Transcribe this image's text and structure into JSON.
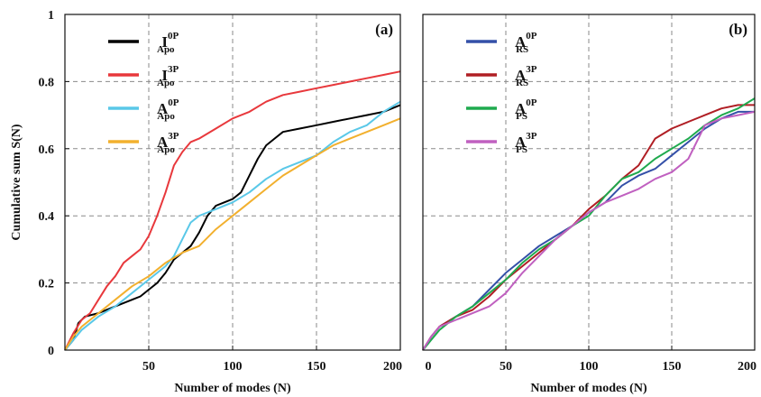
{
  "chart_data": [
    {
      "type": "line",
      "panel_label": "(a)",
      "xlabel": "Number of modes (N)",
      "ylabel": "Cumulative sum S(N)",
      "xlim": [
        0,
        200
      ],
      "ylim": [
        0,
        1
      ],
      "xticks": [
        "50",
        "100",
        "150",
        "200"
      ],
      "yticks": [
        "0",
        "0.2",
        "0.4",
        "0.6",
        "0.8",
        "1"
      ],
      "grid": true,
      "legend_position": "top-left",
      "series": [
        {
          "base": "I",
          "sup": "0P",
          "sub": "Apo",
          "color": "#000000",
          "x": [
            0,
            5,
            8,
            12,
            20,
            30,
            40,
            45,
            50,
            55,
            60,
            65,
            70,
            75,
            80,
            85,
            90,
            95,
            100,
            105,
            110,
            115,
            120,
            125,
            130,
            140,
            150,
            160,
            170,
            180,
            190,
            200
          ],
          "y": [
            0,
            0.03,
            0.08,
            0.1,
            0.11,
            0.13,
            0.15,
            0.16,
            0.18,
            0.2,
            0.23,
            0.27,
            0.29,
            0.31,
            0.35,
            0.4,
            0.43,
            0.44,
            0.45,
            0.47,
            0.52,
            0.57,
            0.61,
            0.63,
            0.65,
            0.66,
            0.67,
            0.68,
            0.69,
            0.7,
            0.71,
            0.73
          ]
        },
        {
          "base": "I",
          "sup": "3P",
          "sub": "Apo",
          "color": "#e8383c",
          "x": [
            0,
            5,
            10,
            15,
            20,
            25,
            30,
            35,
            40,
            45,
            50,
            55,
            60,
            65,
            70,
            75,
            80,
            90,
            100,
            110,
            120,
            130,
            140,
            150,
            160,
            170,
            180,
            190,
            200
          ],
          "y": [
            0,
            0.05,
            0.09,
            0.11,
            0.15,
            0.19,
            0.22,
            0.26,
            0.28,
            0.3,
            0.34,
            0.4,
            0.47,
            0.55,
            0.59,
            0.62,
            0.63,
            0.66,
            0.69,
            0.71,
            0.74,
            0.76,
            0.77,
            0.78,
            0.79,
            0.8,
            0.81,
            0.82,
            0.83
          ]
        },
        {
          "base": "A",
          "sup": "0P",
          "sub": "Apo",
          "color": "#5ac8e8",
          "x": [
            0,
            5,
            10,
            20,
            30,
            40,
            50,
            60,
            65,
            70,
            75,
            80,
            85,
            90,
            100,
            110,
            120,
            130,
            140,
            150,
            160,
            170,
            180,
            190,
            200
          ],
          "y": [
            0,
            0.03,
            0.06,
            0.1,
            0.13,
            0.17,
            0.21,
            0.25,
            0.28,
            0.33,
            0.38,
            0.4,
            0.41,
            0.42,
            0.44,
            0.47,
            0.51,
            0.54,
            0.56,
            0.58,
            0.62,
            0.65,
            0.67,
            0.71,
            0.74
          ]
        },
        {
          "base": "A",
          "sup": "3P",
          "sub": "Apo",
          "color": "#f2b02e",
          "x": [
            0,
            5,
            10,
            20,
            30,
            40,
            50,
            60,
            70,
            80,
            90,
            100,
            110,
            120,
            130,
            140,
            150,
            160,
            170,
            180,
            190,
            200
          ],
          "y": [
            0,
            0.04,
            0.07,
            0.11,
            0.15,
            0.19,
            0.22,
            0.26,
            0.29,
            0.31,
            0.36,
            0.4,
            0.44,
            0.48,
            0.52,
            0.55,
            0.58,
            0.61,
            0.63,
            0.65,
            0.67,
            0.69
          ]
        }
      ]
    },
    {
      "type": "line",
      "panel_label": "(b)",
      "xlabel": "Number of modes (N)",
      "ylabel": "",
      "xlim": [
        0,
        200
      ],
      "ylim": [
        0,
        1
      ],
      "xticks": [
        "0",
        "50",
        "100",
        "150",
        "200"
      ],
      "yticks": [],
      "grid": true,
      "legend_position": "top-left",
      "series": [
        {
          "base": "A",
          "sup": "0P",
          "sub": "RS",
          "color": "#3450a8",
          "x": [
            0,
            5,
            10,
            20,
            30,
            40,
            50,
            60,
            70,
            80,
            90,
            100,
            110,
            120,
            130,
            140,
            150,
            160,
            170,
            180,
            190,
            200
          ],
          "y": [
            0,
            0.04,
            0.07,
            0.1,
            0.13,
            0.18,
            0.23,
            0.27,
            0.31,
            0.34,
            0.37,
            0.41,
            0.44,
            0.49,
            0.52,
            0.54,
            0.58,
            0.62,
            0.66,
            0.69,
            0.71,
            0.71
          ]
        },
        {
          "base": "A",
          "sup": "3P",
          "sub": "RS",
          "color": "#b01e24",
          "x": [
            0,
            5,
            10,
            20,
            30,
            40,
            50,
            60,
            70,
            80,
            90,
            100,
            110,
            120,
            130,
            140,
            150,
            160,
            170,
            180,
            190,
            200
          ],
          "y": [
            0,
            0.04,
            0.07,
            0.1,
            0.12,
            0.16,
            0.21,
            0.25,
            0.29,
            0.33,
            0.37,
            0.42,
            0.46,
            0.51,
            0.55,
            0.63,
            0.66,
            0.68,
            0.7,
            0.72,
            0.73,
            0.73
          ]
        },
        {
          "base": "A",
          "sup": "0P",
          "sub": "PS",
          "color": "#1faa4e",
          "x": [
            0,
            5,
            10,
            20,
            30,
            40,
            50,
            60,
            70,
            80,
            90,
            100,
            110,
            120,
            130,
            140,
            150,
            160,
            170,
            180,
            190,
            200
          ],
          "y": [
            0,
            0.03,
            0.06,
            0.1,
            0.13,
            0.17,
            0.21,
            0.26,
            0.3,
            0.33,
            0.37,
            0.4,
            0.46,
            0.51,
            0.53,
            0.57,
            0.6,
            0.63,
            0.67,
            0.7,
            0.72,
            0.75
          ]
        },
        {
          "base": "A",
          "sup": "3P",
          "sub": "PS",
          "color": "#c060c0",
          "x": [
            0,
            5,
            10,
            20,
            30,
            40,
            50,
            60,
            70,
            80,
            90,
            100,
            110,
            120,
            130,
            140,
            150,
            160,
            170,
            180,
            190,
            200
          ],
          "y": [
            0,
            0.04,
            0.07,
            0.09,
            0.11,
            0.13,
            0.17,
            0.23,
            0.28,
            0.33,
            0.37,
            0.41,
            0.44,
            0.46,
            0.48,
            0.51,
            0.53,
            0.57,
            0.67,
            0.69,
            0.7,
            0.71
          ]
        }
      ]
    }
  ]
}
